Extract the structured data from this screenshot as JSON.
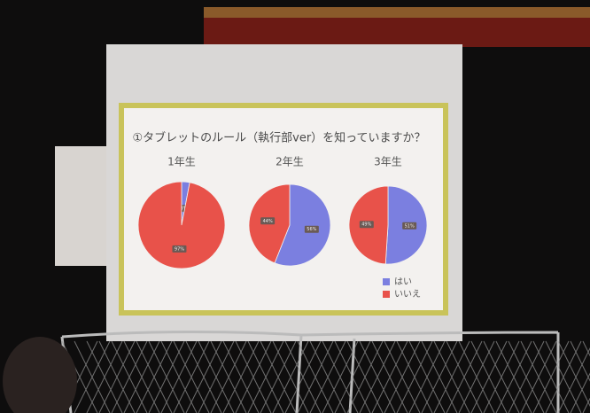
{
  "slide_title": "①タブレットのルール（執行部ver）を知っていますか？",
  "legend": {
    "labels": [
      "はい",
      "いいえ"
    ],
    "colors": [
      "#7b7fe0",
      "#e8524a"
    ]
  },
  "chart_data": [
    {
      "type": "pie",
      "title": "1年生",
      "values": [
        3,
        97
      ],
      "value_labels": [
        "3%",
        "97%"
      ]
    },
    {
      "type": "pie",
      "title": "2年生",
      "values": [
        56,
        44
      ],
      "value_labels": [
        "56%",
        "44%"
      ]
    },
    {
      "type": "pie",
      "title": "3年生",
      "values": [
        51,
        49
      ],
      "value_labels": [
        "51%",
        "49%"
      ]
    }
  ]
}
